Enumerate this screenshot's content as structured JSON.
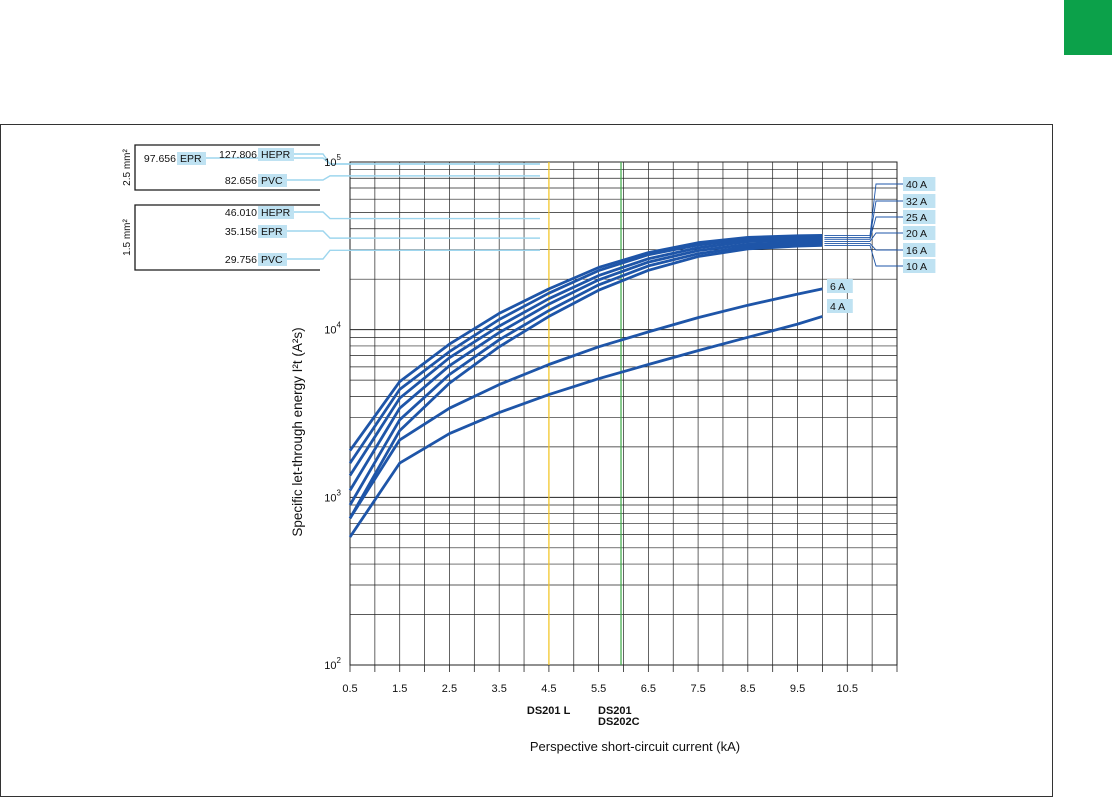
{
  "chart_data": {
    "type": "line",
    "x_scale": "linear",
    "y_scale": "log",
    "xlim": [
      0.5,
      11.5
    ],
    "ylim": [
      100,
      100000
    ],
    "x_ticks": [
      "0.5",
      "1.5",
      "2.5",
      "3.5",
      "4.5",
      "5.5",
      "6.5",
      "7.5",
      "8.5",
      "9.5",
      "10.5"
    ],
    "xlabel": "Perspective short-circuit current (kA)",
    "ylabel": "Specific let-through energy I²t  (A²s)",
    "y_ticks": [
      {
        "base": "10",
        "exp": "2",
        "value": 100
      },
      {
        "base": "10",
        "exp": "3",
        "value": 1000
      },
      {
        "base": "10",
        "exp": "4",
        "value": 10000
      },
      {
        "base": "10",
        "exp": "5",
        "value": 100000
      }
    ],
    "grid": true,
    "series": [
      {
        "name": "40 A",
        "x": [
          0.5,
          1.5,
          2.5,
          3.5,
          4.5,
          5.5,
          6.5,
          7.5,
          8.5,
          9.5,
          10
        ],
        "y": [
          1900,
          4900,
          8200,
          12500,
          17500,
          23500,
          28800,
          33000,
          35500,
          36300,
          36500
        ]
      },
      {
        "name": "32 A",
        "x": [
          0.5,
          1.5,
          2.5,
          3.5,
          4.5,
          5.5,
          6.5,
          7.5,
          8.5,
          9.5,
          10
        ],
        "y": [
          1600,
          4400,
          7400,
          11500,
          16500,
          22500,
          28000,
          32000,
          34500,
          35200,
          35400
        ]
      },
      {
        "name": "25 A",
        "x": [
          0.5,
          1.5,
          2.5,
          3.5,
          4.5,
          5.5,
          6.5,
          7.5,
          8.5,
          9.5,
          10
        ],
        "y": [
          1350,
          3900,
          6800,
          10500,
          15300,
          21000,
          26500,
          30800,
          33500,
          34300,
          34600
        ]
      },
      {
        "name": "20 A",
        "x": [
          0.5,
          1.5,
          2.5,
          3.5,
          4.5,
          5.5,
          6.5,
          7.5,
          8.5,
          9.5,
          10
        ],
        "y": [
          1100,
          3400,
          6100,
          9600,
          14200,
          19800,
          25300,
          29600,
          32300,
          33300,
          33600
        ]
      },
      {
        "name": "16 A",
        "x": [
          0.5,
          1.5,
          2.5,
          3.5,
          4.5,
          5.5,
          6.5,
          7.5,
          8.5,
          9.5,
          10
        ],
        "y": [
          900,
          2900,
          5400,
          8700,
          13000,
          18500,
          24000,
          28400,
          31300,
          32400,
          32700
        ]
      },
      {
        "name": "10 A",
        "x": [
          0.5,
          1.5,
          2.5,
          3.5,
          4.5,
          5.5,
          6.5,
          7.5,
          8.5,
          9.5,
          10
        ],
        "y": [
          750,
          2500,
          4800,
          7900,
          12000,
          17200,
          22600,
          27300,
          30300,
          31500,
          31800
        ]
      },
      {
        "name": "6 A",
        "x": [
          0.5,
          1.5,
          2.5,
          3.5,
          4.5,
          5.5,
          6.5,
          7.5,
          8.5,
          9.5,
          10
        ],
        "y": [
          750,
          2200,
          3400,
          4700,
          6200,
          7900,
          9700,
          11800,
          14000,
          16300,
          17500
        ]
      },
      {
        "name": "4 A",
        "x": [
          0.5,
          1.5,
          2.5,
          3.5,
          4.5,
          5.5,
          6.5,
          7.5,
          8.5,
          9.5,
          10
        ],
        "y": [
          580,
          1600,
          2400,
          3200,
          4100,
          5100,
          6200,
          7500,
          9000,
          10800,
          12000
        ]
      }
    ],
    "vertical_markers": [
      {
        "x": 4.5,
        "color": "#f2c21b",
        "label_lines": [
          "DS201 L"
        ]
      },
      {
        "x": 5.95,
        "color": "#3aa845",
        "label_lines": [
          "DS201",
          "DS202C"
        ]
      }
    ],
    "cable_reference": [
      {
        "section_label": "2.5 mm²",
        "entries": [
          {
            "value": "97.656",
            "insulation": "EPR",
            "y": 97656
          },
          {
            "value": "127.806",
            "insulation": "HEPR",
            "y": 127806
          },
          {
            "value": "82.656",
            "insulation": "PVC",
            "y": 82656
          }
        ]
      },
      {
        "section_label": "1.5 mm²",
        "entries": [
          {
            "value": "46.010",
            "insulation": "HEPR",
            "y": 46010
          },
          {
            "value": "35.156",
            "insulation": "EPR",
            "y": 35156
          },
          {
            "value": "29.756",
            "insulation": "PVC",
            "y": 29756
          }
        ]
      }
    ]
  },
  "colors": {
    "curve": "#1e55a8",
    "label_box": "#bfe2f2",
    "reference_line": "#9ed6ee",
    "grid": "#222222",
    "tab": "#0ca14a"
  }
}
